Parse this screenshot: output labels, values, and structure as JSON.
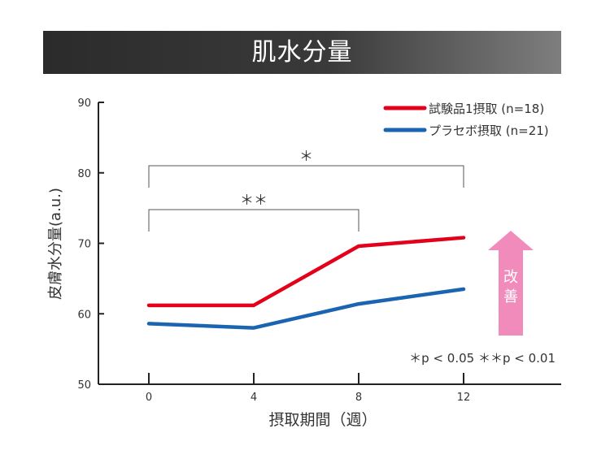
{
  "title": "肌水分量",
  "chart_data": {
    "type": "line",
    "title": "肌水分量",
    "x": [
      0,
      4,
      8,
      12
    ],
    "xticks": [
      "0",
      "4",
      "8",
      "12"
    ],
    "xlabel": "摂取期間（週）",
    "ylabel": "皮膚水分量(a.u.)",
    "ylim": [
      50,
      90
    ],
    "yticks": [
      "50",
      "60",
      "70",
      "80",
      "90"
    ],
    "grid": false,
    "legend_position": "top-right",
    "series": [
      {
        "name": "試験品1摂取 (n=18)",
        "color": "#e3001b",
        "values": [
          61.2,
          61.2,
          69.6,
          70.8
        ]
      },
      {
        "name": "プラセボ摂取 (n=21)",
        "color": "#1a64b2",
        "values": [
          58.6,
          58.0,
          61.4,
          63.5
        ]
      }
    ],
    "significance": [
      {
        "label": "＊",
        "from": 0,
        "to": 12
      },
      {
        "label": "＊＊",
        "from": 0,
        "to": 8
      }
    ],
    "pvalue_note": "＊p < 0.05  ＊＊p < 0.01",
    "improve_label": "改善",
    "improve_color": "#f08bbb"
  }
}
